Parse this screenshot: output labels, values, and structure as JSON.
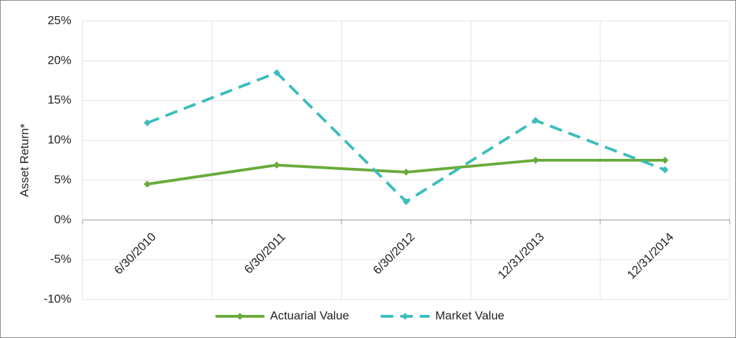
{
  "chart_data": {
    "type": "line",
    "y_label": "Asset Return*",
    "categories": [
      "6/30/2010",
      "6/30/2011",
      "6/30/2012",
      "12/31/2013",
      "12/31/2014"
    ],
    "series": [
      {
        "name": "Actuarial Value",
        "color": "#6aab3c",
        "dash": false,
        "values": [
          4.5,
          6.9,
          6.0,
          7.5,
          7.5
        ]
      },
      {
        "name": "Market Value",
        "color": "#3dbdbd",
        "dash": true,
        "values": [
          12.2,
          18.5,
          2.3,
          12.5,
          6.3
        ]
      }
    ],
    "ylim": [
      -10,
      25
    ],
    "yticks": [
      {
        "value": -10,
        "label": "-10%"
      },
      {
        "value": -5,
        "label": "-5%"
      },
      {
        "value": 0,
        "label": "0%"
      },
      {
        "value": 5,
        "label": "5%"
      },
      {
        "value": 10,
        "label": "10%"
      },
      {
        "value": 15,
        "label": "15%"
      },
      {
        "value": 20,
        "label": "20%"
      },
      {
        "value": 25,
        "label": "25%"
      }
    ],
    "grid": true,
    "legend": "bottom"
  }
}
